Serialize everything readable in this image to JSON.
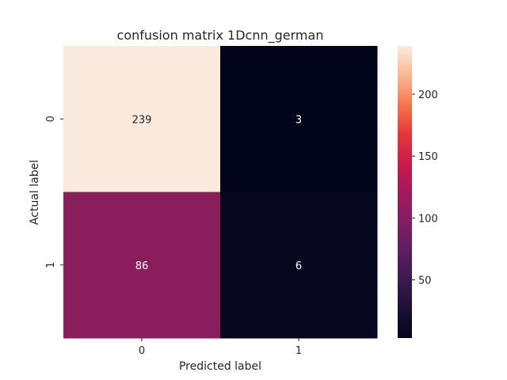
{
  "chart_data": {
    "type": "heatmap",
    "title": "confusion matrix 1Dcnn_german",
    "xlabel": "Predicted label",
    "ylabel": "Actual label",
    "x_categories": [
      "0",
      "1"
    ],
    "y_categories": [
      "0",
      "1"
    ],
    "values": [
      [
        239,
        3
      ],
      [
        86,
        6
      ]
    ],
    "colorbar": {
      "min": 3,
      "max": 239,
      "ticks": [
        50,
        100,
        150,
        200
      ],
      "tick_labels": [
        "50",
        "100",
        "150",
        "200"
      ],
      "colormap": "rocket"
    },
    "colors": {
      "cell_0_0": "#faeade",
      "cell_0_1": "#03051a",
      "cell_1_0": "#8a1d5b",
      "cell_1_1": "#06071e",
      "text_on_light": "#262626",
      "text_on_dark": "#ffffff"
    }
  }
}
